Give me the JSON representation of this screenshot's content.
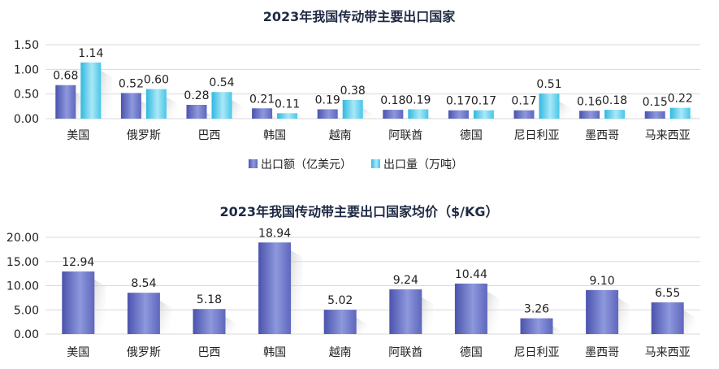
{
  "chart_data": [
    {
      "type": "bar",
      "title": "2023年我国传动带主要出口国家",
      "categories": [
        "美国",
        "俄罗斯",
        "巴西",
        "韩国",
        "越南",
        "阿联酋",
        "德国",
        "尼日利亚",
        "墨西哥",
        "马来西亚"
      ],
      "series": [
        {
          "name": "出口额（亿美元）",
          "values": [
            0.68,
            0.52,
            0.28,
            0.21,
            0.19,
            0.18,
            0.17,
            0.17,
            0.16,
            0.15
          ],
          "labels": [
            "0.68",
            "0.52",
            "0.28",
            "0.21",
            "0.19",
            "0.18",
            "0.17",
            "0.17",
            "0.16",
            "0.15"
          ]
        },
        {
          "name": "出口量（万吨）",
          "values": [
            1.14,
            0.6,
            0.54,
            0.11,
            0.38,
            0.19,
            0.17,
            0.51,
            0.18,
            0.22
          ],
          "labels": [
            "1.14",
            "0.60",
            "0.54",
            "0.11",
            "0.38",
            "0.19",
            "0.17",
            "0.51",
            "0.18",
            "0.22"
          ]
        }
      ],
      "ylim": [
        0,
        1.5
      ],
      "yticks": [
        "0.00",
        "0.50",
        "1.00",
        "1.50"
      ],
      "legend": "bottom",
      "grid": true
    },
    {
      "type": "bar",
      "title": "2023年我国传动带主要出口国家均价（$/KG）",
      "categories": [
        "美国",
        "俄罗斯",
        "巴西",
        "韩国",
        "越南",
        "阿联酋",
        "德国",
        "尼日利亚",
        "墨西哥",
        "马来西亚"
      ],
      "series": [
        {
          "values": [
            12.94,
            8.54,
            5.18,
            18.94,
            5.02,
            9.24,
            10.44,
            3.26,
            9.1,
            6.55
          ],
          "labels": [
            "12.94",
            "8.54",
            "5.18",
            "18.94",
            "5.02",
            "9.24",
            "10.44",
            "3.26",
            "9.10",
            "6.55"
          ]
        }
      ],
      "ylim": [
        0,
        20
      ],
      "yticks": [
        "0.00",
        "5.00",
        "10.00",
        "15.00",
        "20.00"
      ],
      "grid": true
    }
  ],
  "colors": {
    "bar_dark": "#5a63b8",
    "bar_light": "#9aa3e0",
    "cyan_dark": "#3ec3e6",
    "cyan_light": "#a6e6f6"
  }
}
